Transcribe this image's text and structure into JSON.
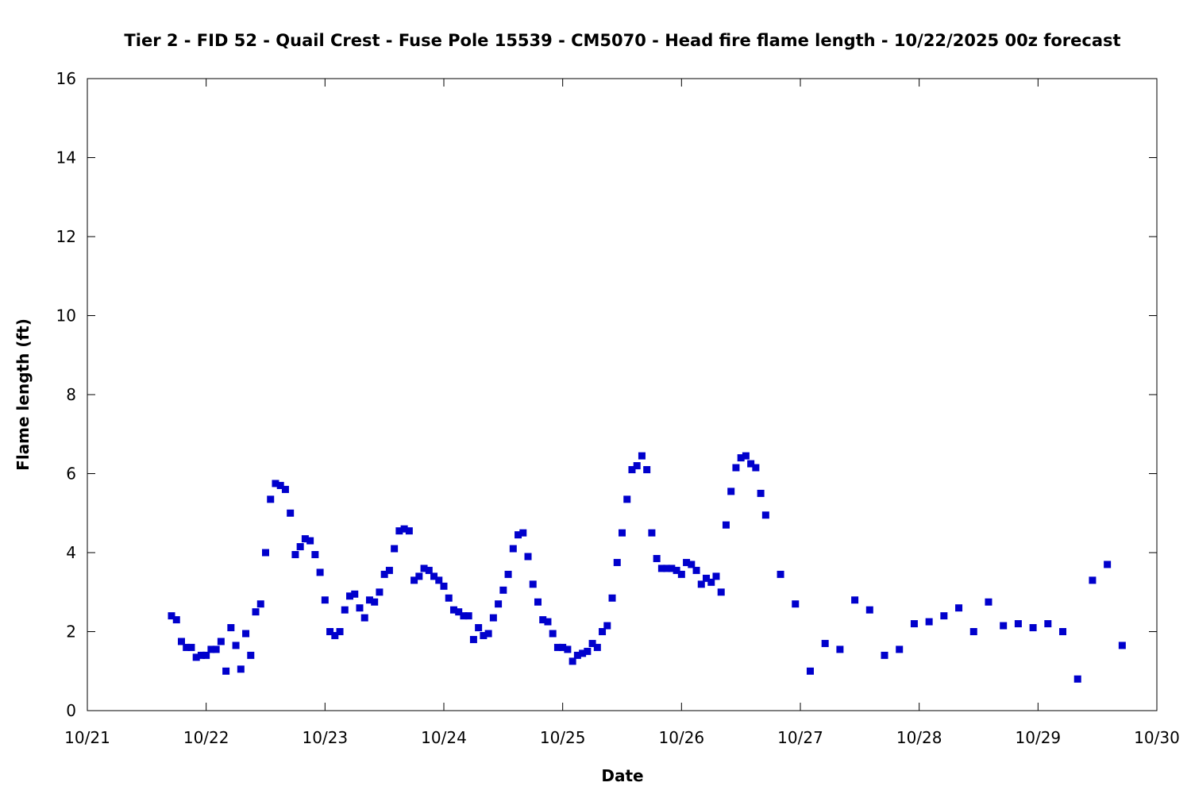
{
  "chart_data": {
    "type": "scatter",
    "title": "Tier 2 - FID 52 - Quail Crest - Fuse Pole 15539 - CM5070 - Head fire flame length - 10/22/2025 00z forecast",
    "xlabel": "Date",
    "ylabel": "Flame length (ft)",
    "xlim": [
      "10/21 00:00",
      "10/30 00:00"
    ],
    "ylim": [
      0,
      16
    ],
    "xticks": [
      "10/21",
      "10/22",
      "10/23",
      "10/24",
      "10/25",
      "10/26",
      "10/27",
      "10/28",
      "10/29",
      "10/30"
    ],
    "yticks": [
      "0",
      "2",
      "4",
      "6",
      "8",
      "10",
      "12",
      "14",
      "16"
    ],
    "grid": false,
    "marker_color": "#0000cc",
    "series": [
      {
        "x": [
          "10/21 17:00",
          "10/21 18:00",
          "10/21 19:00",
          "10/21 20:00",
          "10/21 21:00",
          "10/21 22:00",
          "10/21 23:00",
          "10/22 00:00",
          "10/22 01:00",
          "10/22 02:00",
          "10/22 03:00",
          "10/22 04:00",
          "10/22 05:00",
          "10/22 06:00",
          "10/22 07:00",
          "10/22 08:00",
          "10/22 09:00",
          "10/22 10:00",
          "10/22 11:00",
          "10/22 12:00",
          "10/22 13:00",
          "10/22 14:00",
          "10/22 15:00",
          "10/22 16:00",
          "10/22 17:00",
          "10/22 18:00",
          "10/22 19:00",
          "10/22 20:00",
          "10/22 21:00",
          "10/22 22:00",
          "10/22 23:00",
          "10/23 00:00",
          "10/23 01:00",
          "10/23 02:00",
          "10/23 03:00",
          "10/23 04:00",
          "10/23 05:00",
          "10/23 06:00",
          "10/23 07:00",
          "10/23 08:00",
          "10/23 09:00",
          "10/23 10:00",
          "10/23 11:00",
          "10/23 12:00",
          "10/23 13:00",
          "10/23 14:00",
          "10/23 15:00",
          "10/23 16:00",
          "10/23 17:00",
          "10/23 18:00",
          "10/23 19:00",
          "10/23 20:00",
          "10/23 21:00",
          "10/23 22:00",
          "10/23 23:00",
          "10/24 00:00",
          "10/24 01:00",
          "10/24 02:00",
          "10/24 03:00",
          "10/24 04:00",
          "10/24 05:00",
          "10/24 06:00",
          "10/24 07:00",
          "10/24 08:00",
          "10/24 09:00",
          "10/24 10:00",
          "10/24 11:00",
          "10/24 12:00",
          "10/24 13:00",
          "10/24 14:00",
          "10/24 15:00",
          "10/24 16:00",
          "10/24 17:00",
          "10/24 18:00",
          "10/24 19:00",
          "10/24 20:00",
          "10/24 21:00",
          "10/24 22:00",
          "10/24 23:00",
          "10/25 00:00",
          "10/25 01:00",
          "10/25 02:00",
          "10/25 03:00",
          "10/25 04:00",
          "10/25 05:00",
          "10/25 06:00",
          "10/25 07:00",
          "10/25 08:00",
          "10/25 09:00",
          "10/25 10:00",
          "10/25 11:00",
          "10/25 12:00",
          "10/25 13:00",
          "10/25 14:00",
          "10/25 15:00",
          "10/25 16:00",
          "10/25 17:00",
          "10/25 18:00",
          "10/25 19:00",
          "10/25 20:00",
          "10/25 21:00",
          "10/25 22:00",
          "10/25 23:00",
          "10/26 00:00",
          "10/26 01:00",
          "10/26 02:00",
          "10/26 03:00",
          "10/26 04:00",
          "10/26 05:00",
          "10/26 06:00",
          "10/26 07:00",
          "10/26 08:00",
          "10/26 09:00",
          "10/26 10:00",
          "10/26 11:00",
          "10/26 12:00",
          "10/26 13:00",
          "10/26 14:00",
          "10/26 15:00",
          "10/26 16:00",
          "10/26 17:00",
          "10/26 20:00",
          "10/26 23:00",
          "10/27 02:00",
          "10/27 05:00",
          "10/27 08:00",
          "10/27 11:00",
          "10/27 14:00",
          "10/27 17:00",
          "10/27 20:00",
          "10/27 23:00",
          "10/28 02:00",
          "10/28 05:00",
          "10/28 08:00",
          "10/28 11:00",
          "10/28 14:00",
          "10/28 17:00",
          "10/28 20:00",
          "10/28 23:00",
          "10/29 02:00",
          "10/29 05:00",
          "10/29 08:00",
          "10/29 11:00",
          "10/29 14:00",
          "10/29 17:00"
        ],
        "y": [
          2.4,
          2.3,
          1.75,
          1.6,
          1.6,
          1.35,
          1.4,
          1.4,
          1.55,
          1.55,
          1.75,
          1.0,
          2.1,
          1.65,
          1.05,
          1.95,
          1.4,
          2.5,
          2.7,
          4.0,
          5.35,
          5.75,
          5.7,
          5.6,
          5.0,
          3.95,
          4.15,
          4.35,
          4.3,
          3.95,
          3.5,
          2.8,
          2.0,
          1.9,
          2.0,
          2.55,
          2.9,
          2.95,
          2.6,
          2.35,
          2.8,
          2.75,
          3.0,
          3.45,
          3.55,
          4.1,
          4.55,
          4.6,
          4.55,
          3.3,
          3.4,
          3.6,
          3.55,
          3.4,
          3.3,
          3.15,
          2.85,
          2.55,
          2.5,
          2.4,
          2.4,
          1.8,
          2.1,
          1.9,
          1.95,
          2.35,
          2.7,
          3.05,
          3.45,
          4.1,
          4.45,
          4.5,
          3.9,
          3.2,
          2.75,
          2.3,
          2.25,
          1.95,
          1.6,
          1.6,
          1.55,
          1.25,
          1.4,
          1.45,
          1.5,
          1.7,
          1.6,
          2.0,
          2.15,
          2.85,
          3.75,
          4.5,
          5.35,
          6.1,
          6.2,
          6.45,
          6.1,
          4.5,
          3.85,
          3.6,
          3.6,
          3.6,
          3.55,
          3.45,
          3.75,
          3.7,
          3.55,
          3.2,
          3.35,
          3.25,
          3.4,
          3.0,
          4.7,
          5.55,
          6.15,
          6.4,
          6.45,
          6.25,
          6.15,
          5.5,
          4.95,
          3.45,
          2.7,
          1.0,
          1.7,
          1.55,
          2.8,
          2.55,
          1.4,
          1.55,
          2.2,
          2.25,
          2.4,
          2.6,
          2.0,
          2.75,
          2.15,
          2.2,
          2.1,
          2.2,
          2.0,
          0.8,
          3.3,
          3.7,
          1.65
        ]
      }
    ]
  }
}
